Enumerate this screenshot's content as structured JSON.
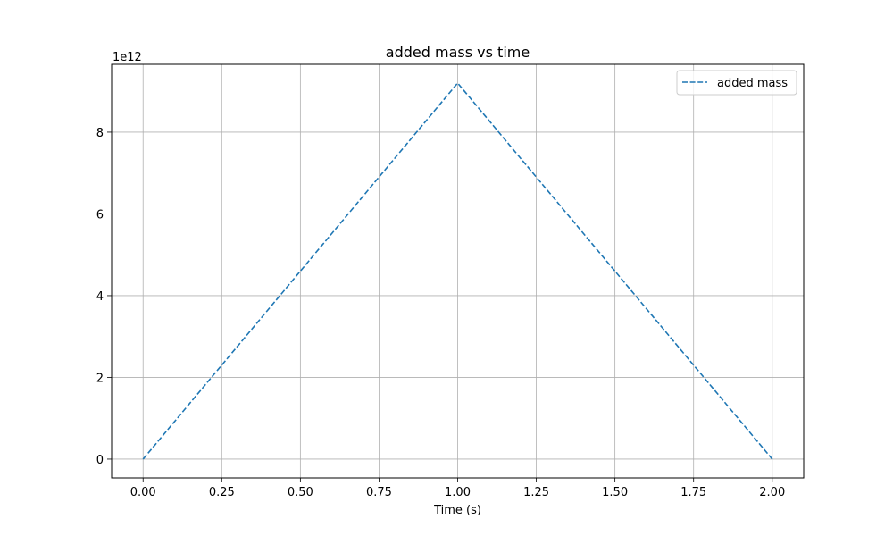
{
  "chart_data": {
    "type": "line",
    "title": "added mass vs time",
    "xlabel": "Time (s)",
    "ylabel": "",
    "y_offset_label": "1e12",
    "xlim": [
      -0.1,
      2.1
    ],
    "ylim": [
      -0.46,
      9.66
    ],
    "x_ticks": [
      0.0,
      0.25,
      0.5,
      0.75,
      1.0,
      1.25,
      1.5,
      1.75,
      2.0
    ],
    "x_tick_labels": [
      "0.00",
      "0.25",
      "0.50",
      "0.75",
      "1.00",
      "1.25",
      "1.50",
      "1.75",
      "2.00"
    ],
    "y_ticks": [
      0,
      2,
      4,
      6,
      8
    ],
    "y_tick_labels": [
      "0",
      "2",
      "4",
      "6",
      "8"
    ],
    "grid": true,
    "legend_position": "top-right",
    "series": [
      {
        "name": "added mass",
        "color": "#1f77b4",
        "line_style": "dashed",
        "x": [
          0.0,
          1.0,
          2.0
        ],
        "y": [
          0.0,
          9.2,
          0.0
        ]
      }
    ]
  }
}
